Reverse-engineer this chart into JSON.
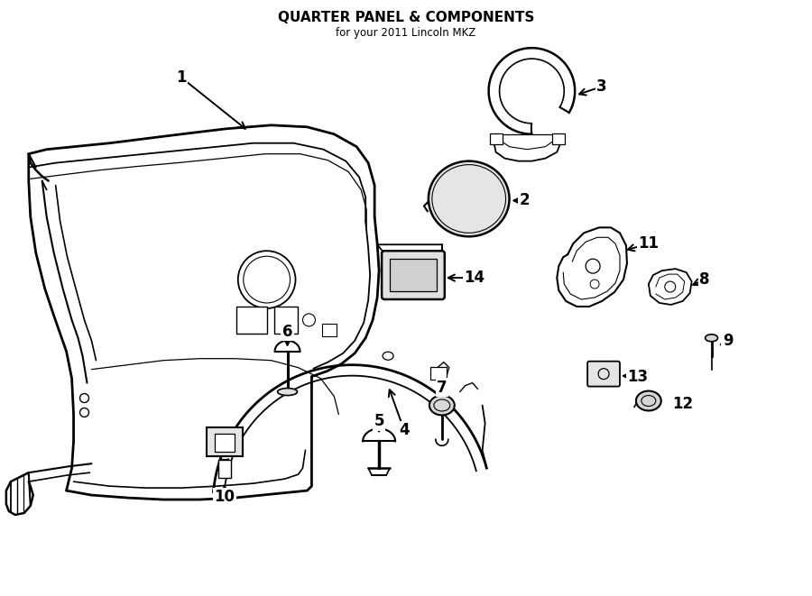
{
  "title": "QUARTER PANEL & COMPONENTS",
  "subtitle": "for your 2011 Lincoln MKZ",
  "bg_color": "#ffffff",
  "line_color": "#000000",
  "fig_width": 9.0,
  "fig_height": 6.61
}
